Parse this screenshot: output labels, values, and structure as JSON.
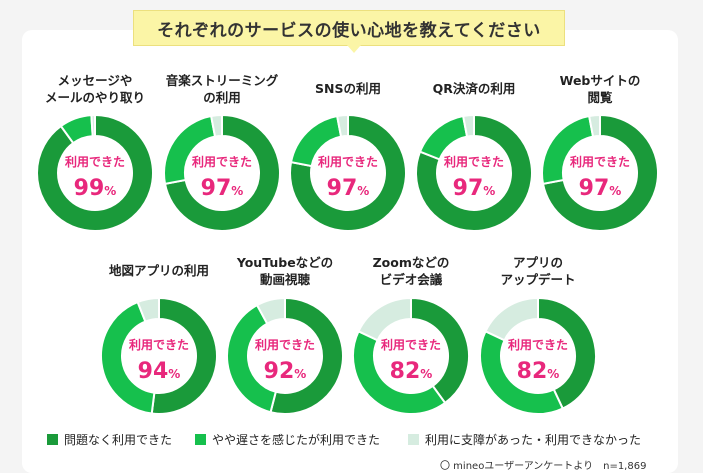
{
  "header": {
    "title": "それぞれのサービスの使い心地を教えてください"
  },
  "chart_data": {
    "type": "pie",
    "center_label": "利用できた",
    "unit": "%",
    "legend": [
      {
        "name": "問題なく利用できた",
        "color": "#1a9a3a"
      },
      {
        "name": "やや遅さを感じたが利用できた",
        "color": "#16c04d"
      },
      {
        "name": "利用に支障があった・利用できなかった",
        "color": "#d6ece0"
      }
    ],
    "charts": [
      {
        "title": "メッセージや\nメールのやり取り",
        "value": 99,
        "series": [
          90,
          9,
          1
        ]
      },
      {
        "title": "音楽ストリーミング\nの利用",
        "value": 97,
        "series": [
          72,
          25,
          3
        ]
      },
      {
        "title": "SNSの利用",
        "value": 97,
        "series": [
          78,
          19,
          3
        ]
      },
      {
        "title": "QR決済の利用",
        "value": 97,
        "series": [
          81,
          16,
          3
        ]
      },
      {
        "title": "Webサイトの\n閲覧",
        "value": 97,
        "series": [
          72,
          25,
          3
        ]
      },
      {
        "title": "地図アプリの利用",
        "value": 94,
        "series": [
          52,
          42,
          6
        ]
      },
      {
        "title": "YouTubeなどの\n動画視聴",
        "value": 92,
        "series": [
          54,
          38,
          8
        ]
      },
      {
        "title": "Zoomなどの\nビデオ会議",
        "value": 82,
        "series": [
          40,
          42,
          18
        ]
      },
      {
        "title": "アプリの\nアップデート",
        "value": 82,
        "series": [
          43,
          39,
          18
        ]
      }
    ]
  },
  "source": {
    "text": "〇 mineoユーザーアンケートより　n=1,869"
  }
}
